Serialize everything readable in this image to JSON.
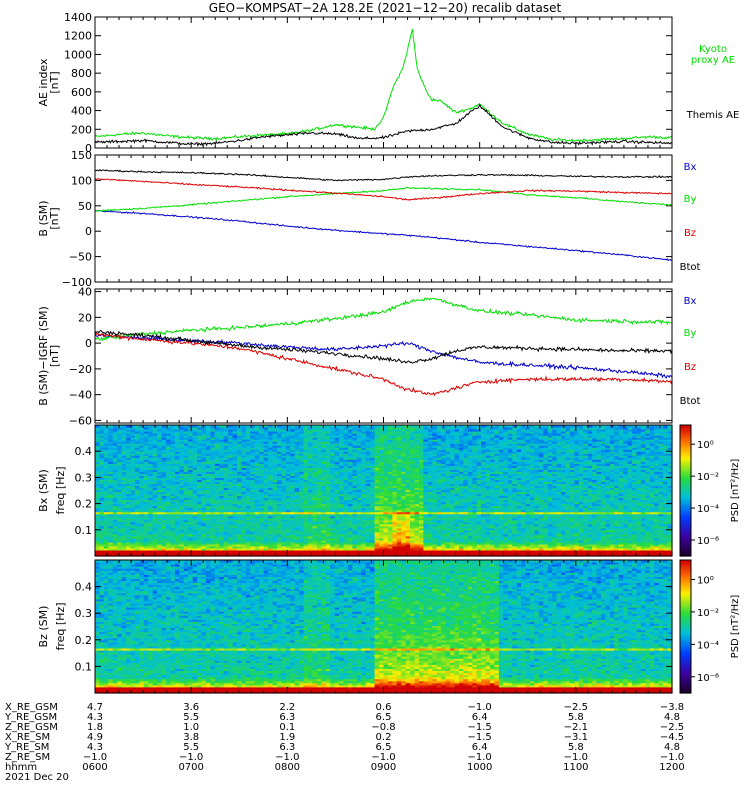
{
  "title": "GEO−KOMPSAT−2A 128.2E (2021−12−20) recalib dataset",
  "colors": {
    "black": "#000000",
    "green": "#00e000",
    "red": "#e00000",
    "blue": "#0000d0"
  },
  "time_axis": {
    "tick_labels": [
      "0600",
      "0700",
      "0800",
      "0900",
      "1000",
      "1100",
      "1200"
    ],
    "x_range_hours": [
      6,
      12
    ],
    "date": "2021 Dec 20",
    "row_label_hhmm": "hhmm"
  },
  "ephemeris": {
    "rows": [
      {
        "label": "X_RE_GSM",
        "values": [
          "4.7",
          "3.6",
          "2.2",
          "0.6",
          "−1.0",
          "−2.5",
          "−3.8"
        ]
      },
      {
        "label": "Y_RE_GSM",
        "values": [
          "4.3",
          "5.5",
          "6.3",
          "6.5",
          "6.4",
          "5.8",
          "4.8"
        ]
      },
      {
        "label": "Z_RE_GSM",
        "values": [
          "1.8",
          "1.0",
          "0.1",
          "−0.8",
          "−1.5",
          "−2.1",
          "−2.5"
        ]
      },
      {
        "label": "X_RE_SM",
        "values": [
          "4.9",
          "3.8",
          "1.9",
          "0.2",
          "−1.5",
          "−3.1",
          "−4.5"
        ]
      },
      {
        "label": "Y_RE_SM",
        "values": [
          "4.3",
          "5.5",
          "6.3",
          "6.5",
          "6.4",
          "5.8",
          "4.8"
        ]
      },
      {
        "label": "Z_RE_SM",
        "values": [
          "−1.0",
          "−1.0",
          "−1.0",
          "−1.0",
          "−1.0",
          "−1.0",
          "−1.0"
        ]
      }
    ]
  },
  "chart_data": [
    {
      "type": "line",
      "ylabel": "AE index",
      "yunit": "[nT]",
      "ylim": [
        0,
        1400
      ],
      "yticks": [
        0,
        200,
        400,
        600,
        800,
        1000,
        1200,
        1400
      ],
      "series": [
        {
          "name": "Kyoto proxy AE",
          "legend": [
            "Kyoto",
            "proxy AE"
          ],
          "color": "#00e000",
          "x": [
            6.0,
            6.25,
            6.5,
            6.75,
            7.0,
            7.25,
            7.5,
            7.75,
            8.0,
            8.25,
            8.5,
            8.75,
            8.9,
            9.0,
            9.1,
            9.2,
            9.25,
            9.3,
            9.35,
            9.4,
            9.45,
            9.5,
            9.6,
            9.75,
            9.9,
            10.0,
            10.1,
            10.25,
            10.5,
            10.75,
            11.0,
            11.25,
            11.5,
            11.75,
            12.0
          ],
          "y": [
            120,
            145,
            160,
            130,
            110,
            100,
            120,
            140,
            150,
            190,
            250,
            220,
            200,
            320,
            650,
            850,
            1050,
            1270,
            850,
            720,
            600,
            520,
            500,
            380,
            420,
            470,
            380,
            260,
            150,
            90,
            80,
            90,
            100,
            120,
            110
          ]
        },
        {
          "name": "Themis AE",
          "legend": [
            "Themis AE"
          ],
          "color": "#000000",
          "x": [
            6.0,
            6.25,
            6.5,
            6.75,
            7.0,
            7.25,
            7.5,
            7.75,
            8.0,
            8.25,
            8.5,
            8.75,
            9.0,
            9.25,
            9.5,
            9.75,
            9.9,
            10.0,
            10.1,
            10.25,
            10.5,
            10.75,
            11.0,
            11.25,
            11.5,
            11.75,
            12.0
          ],
          "y": [
            60,
            70,
            80,
            60,
            40,
            50,
            80,
            120,
            140,
            160,
            150,
            100,
            110,
            180,
            200,
            260,
            380,
            450,
            360,
            220,
            110,
            60,
            50,
            60,
            70,
            60,
            50
          ]
        }
      ]
    },
    {
      "type": "line",
      "ylabel": "B (SM)",
      "yunit": "[nT]",
      "ylim": [
        -100,
        150
      ],
      "yticks": [
        -100,
        -50,
        0,
        50,
        100,
        150
      ],
      "series": [
        {
          "name": "Bx",
          "color": "#0000d0",
          "x": [
            6.0,
            6.5,
            7.0,
            7.5,
            8.0,
            8.5,
            9.0,
            9.25,
            9.5,
            10.0,
            10.5,
            11.0,
            11.5,
            12.0
          ],
          "y": [
            40,
            35,
            28,
            20,
            10,
            2,
            -5,
            -8,
            -12,
            -22,
            -30,
            -38,
            -47,
            -57
          ]
        },
        {
          "name": "By",
          "color": "#00e000",
          "x": [
            6.0,
            6.5,
            7.0,
            7.5,
            8.0,
            8.5,
            9.0,
            9.25,
            9.5,
            10.0,
            10.5,
            11.0,
            11.5,
            12.0
          ],
          "y": [
            40,
            45,
            52,
            60,
            68,
            74,
            80,
            85,
            84,
            82,
            72,
            66,
            58,
            52
          ]
        },
        {
          "name": "Bz",
          "color": "#e00000",
          "x": [
            6.0,
            6.5,
            7.0,
            7.5,
            8.0,
            8.5,
            9.0,
            9.25,
            9.5,
            10.0,
            10.5,
            11.0,
            11.5,
            12.0
          ],
          "y": [
            103,
            98,
            92,
            87,
            81,
            75,
            68,
            62,
            65,
            74,
            80,
            79,
            76,
            74
          ]
        },
        {
          "name": "Btot",
          "color": "#000000",
          "x": [
            6.0,
            6.5,
            7.0,
            7.5,
            8.0,
            8.5,
            9.0,
            9.25,
            9.5,
            10.0,
            10.5,
            11.0,
            11.5,
            12.0
          ],
          "y": [
            120,
            117,
            115,
            112,
            106,
            100,
            102,
            107,
            109,
            111,
            110,
            108,
            107,
            107
          ]
        }
      ]
    },
    {
      "type": "line",
      "ylabel": "B (SM)−IGRF (SM)",
      "yunit": "[nT]",
      "ylim": [
        -62,
        42
      ],
      "yticks": [
        -60,
        -40,
        -20,
        0,
        20,
        40
      ],
      "series": [
        {
          "name": "Bx",
          "color": "#0000d0",
          "x": [
            6.0,
            6.5,
            7.0,
            7.5,
            8.0,
            8.5,
            9.0,
            9.25,
            9.5,
            9.75,
            10.0,
            10.5,
            11.0,
            11.5,
            12.0
          ],
          "y": [
            6,
            4,
            2,
            0,
            -3,
            -5,
            -2,
            0,
            -6,
            -11,
            -15,
            -17,
            -19,
            -22,
            -26
          ]
        },
        {
          "name": "By",
          "color": "#00e000",
          "x": [
            6.0,
            6.5,
            7.0,
            7.5,
            8.0,
            8.5,
            9.0,
            9.25,
            9.5,
            9.75,
            10.0,
            10.5,
            11.0,
            11.5,
            12.0
          ],
          "y": [
            3,
            7,
            10,
            12,
            15,
            19,
            24,
            32,
            35,
            30,
            25,
            22,
            18,
            17,
            16
          ]
        },
        {
          "name": "Bz",
          "color": "#e00000",
          "x": [
            6.0,
            6.5,
            7.0,
            7.5,
            8.0,
            8.5,
            9.0,
            9.25,
            9.5,
            9.75,
            10.0,
            10.5,
            11.0,
            11.5,
            12.0
          ],
          "y": [
            7,
            3,
            0,
            -4,
            -12,
            -20,
            -28,
            -36,
            -40,
            -35,
            -30,
            -28,
            -28,
            -28,
            -30
          ]
        },
        {
          "name": "Btot",
          "color": "#000000",
          "x": [
            6.0,
            6.5,
            7.0,
            7.5,
            8.0,
            8.5,
            9.0,
            9.25,
            9.5,
            9.75,
            10.0,
            10.5,
            11.0,
            11.5,
            12.0
          ],
          "y": [
            9,
            6,
            2,
            -2,
            -5,
            -8,
            -12,
            -15,
            -12,
            -6,
            -3,
            -4,
            -5,
            -6,
            -6
          ]
        }
      ]
    },
    {
      "type": "heatmap",
      "ylabel": "Bx (SM)",
      "yunit": "freq [Hz]",
      "ylim": [
        0,
        0.5
      ],
      "yticks": [
        0.1,
        0.2,
        0.3,
        0.4
      ],
      "colorbar": {
        "label": "PSD [nT²/Hz]",
        "ticks": [
          "10⁰",
          "10⁻²",
          "10⁻⁴",
          "10⁻⁶"
        ],
        "log_range": [
          -7,
          1.2
        ]
      },
      "enhanced_interval_hours": [
        8.9,
        9.4
      ],
      "line_frequency_hz": 0.167
    },
    {
      "type": "heatmap",
      "ylabel": "Bz (SM)",
      "yunit": "freq [Hz]",
      "ylim": [
        0,
        0.5
      ],
      "yticks": [
        0.1,
        0.2,
        0.3,
        0.4
      ],
      "colorbar": {
        "label": "PSD [nT²/Hz]",
        "ticks": [
          "10⁰",
          "10⁻²",
          "10⁻⁴",
          "10⁻⁶"
        ],
        "log_range": [
          -7,
          1.2
        ]
      },
      "enhanced_interval_hours": [
        8.9,
        10.2
      ],
      "line_frequency_hz": 0.167
    }
  ]
}
